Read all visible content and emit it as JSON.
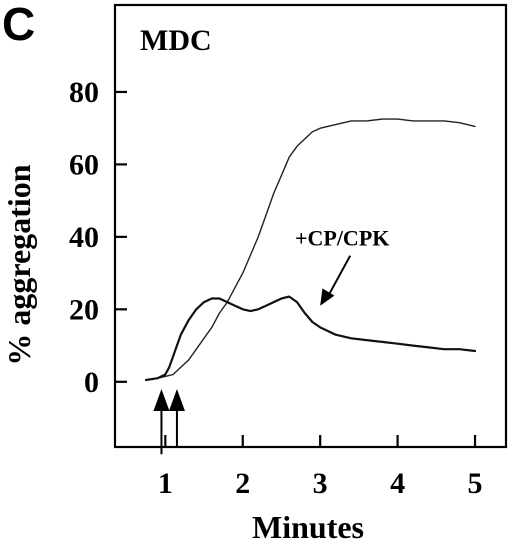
{
  "panel_label": "C",
  "chart_data": {
    "type": "line",
    "title": "MDC",
    "xlabel": "Minutes",
    "ylabel": "% aggregation",
    "xlim": [
      0.35,
      5.4
    ],
    "ylim": [
      -18,
      104
    ],
    "xticks": [
      1,
      2,
      3,
      4,
      5
    ],
    "yticks": [
      0,
      20,
      40,
      60,
      80
    ],
    "grid": false,
    "legend": "none",
    "series": [
      {
        "x": [
          0.75,
          0.9,
          1.0,
          1.1,
          1.2,
          1.3,
          1.4,
          1.5,
          1.6,
          1.7,
          1.8,
          1.9,
          2.0,
          2.1,
          2.2,
          2.3,
          2.4,
          2.5,
          2.6,
          2.7,
          2.8,
          2.9,
          3.0,
          3.2,
          3.4,
          3.6,
          3.8,
          4.0,
          4.2,
          4.4,
          4.6,
          4.8,
          5.0
        ],
        "y": [
          0.5,
          1,
          1.5,
          2,
          4,
          6,
          9,
          12,
          15,
          19,
          22,
          26,
          30,
          35,
          40,
          46,
          52,
          57,
          62,
          65,
          67,
          69,
          70,
          71,
          72,
          72,
          72.5,
          72.5,
          72,
          72,
          72,
          71.5,
          70.5
        ]
      },
      {
        "x": [
          0.75,
          0.9,
          1.0,
          1.05,
          1.1,
          1.2,
          1.3,
          1.4,
          1.5,
          1.6,
          1.7,
          1.8,
          1.9,
          2.0,
          2.1,
          2.2,
          2.3,
          2.4,
          2.5,
          2.6,
          2.7,
          2.8,
          2.9,
          3.0,
          3.2,
          3.4,
          3.6,
          3.8,
          4.0,
          4.2,
          4.4,
          4.6,
          4.8,
          5.0
        ],
        "y": [
          0.5,
          1,
          2,
          4,
          7,
          13,
          17,
          20,
          22,
          23,
          23,
          22,
          21,
          20,
          19.5,
          20,
          21,
          22,
          23,
          23.5,
          22,
          19,
          16.5,
          15,
          13,
          12,
          11.5,
          11,
          10.5,
          10,
          9.5,
          9,
          9,
          8.5
        ]
      }
    ],
    "annotations": [
      {
        "text": "+CP/CPK",
        "points_to": {
          "x": 3.0,
          "y": 21
        }
      }
    ],
    "event_arrows": [
      {
        "x": 0.95,
        "from_y": -20,
        "to_y": -2
      },
      {
        "x": 1.15,
        "from_y": -18,
        "to_y": -2
      }
    ]
  }
}
